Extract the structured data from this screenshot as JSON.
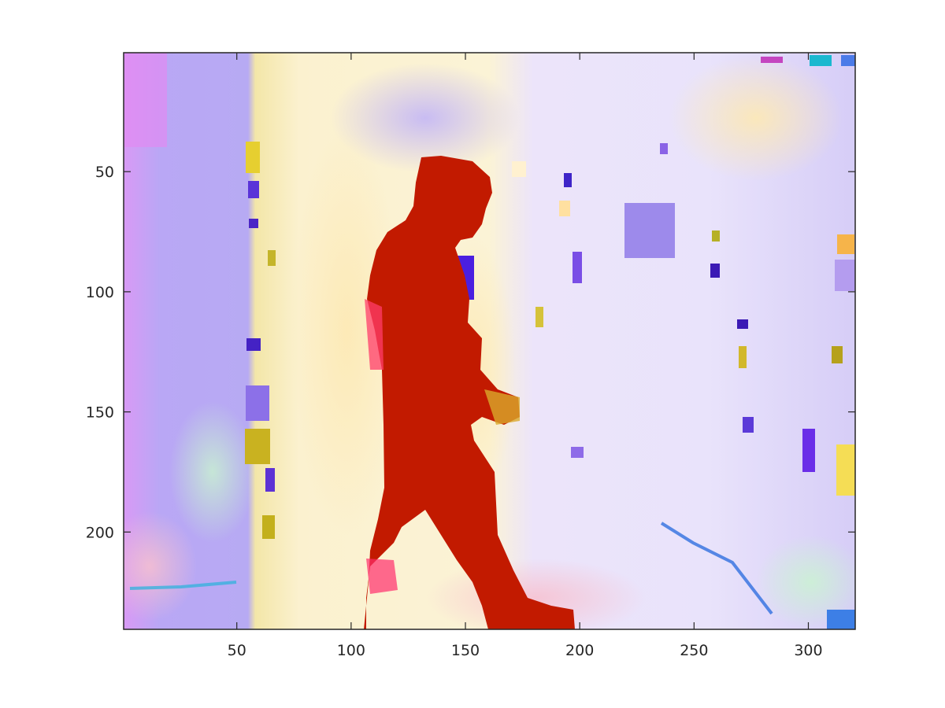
{
  "chart_data": {
    "type": "heatmap",
    "title": "",
    "xlabel": "",
    "ylabel": "",
    "xlim": [
      0.5,
      320.5
    ],
    "ylim": [
      0.5,
      240.5
    ],
    "y_axis_direction": "reversed",
    "x_ticks": [
      50,
      100,
      150,
      200,
      250,
      300
    ],
    "y_ticks": [
      50,
      100,
      150,
      200
    ],
    "x_tick_labels": [
      "50",
      "100",
      "150",
      "200",
      "250",
      "300"
    ],
    "y_tick_labels": [
      "50",
      "100",
      "150",
      "200"
    ],
    "grid": false,
    "colorbar": false,
    "image_description_colors": {
      "background": "#e6dcfa",
      "figure_region": "#c41a00",
      "left_panel": "#b4a8f2",
      "doorway": "#fbf0c8",
      "highlight_yellow": "#f5e66a",
      "accent_blue": "#4a1fe0"
    }
  }
}
